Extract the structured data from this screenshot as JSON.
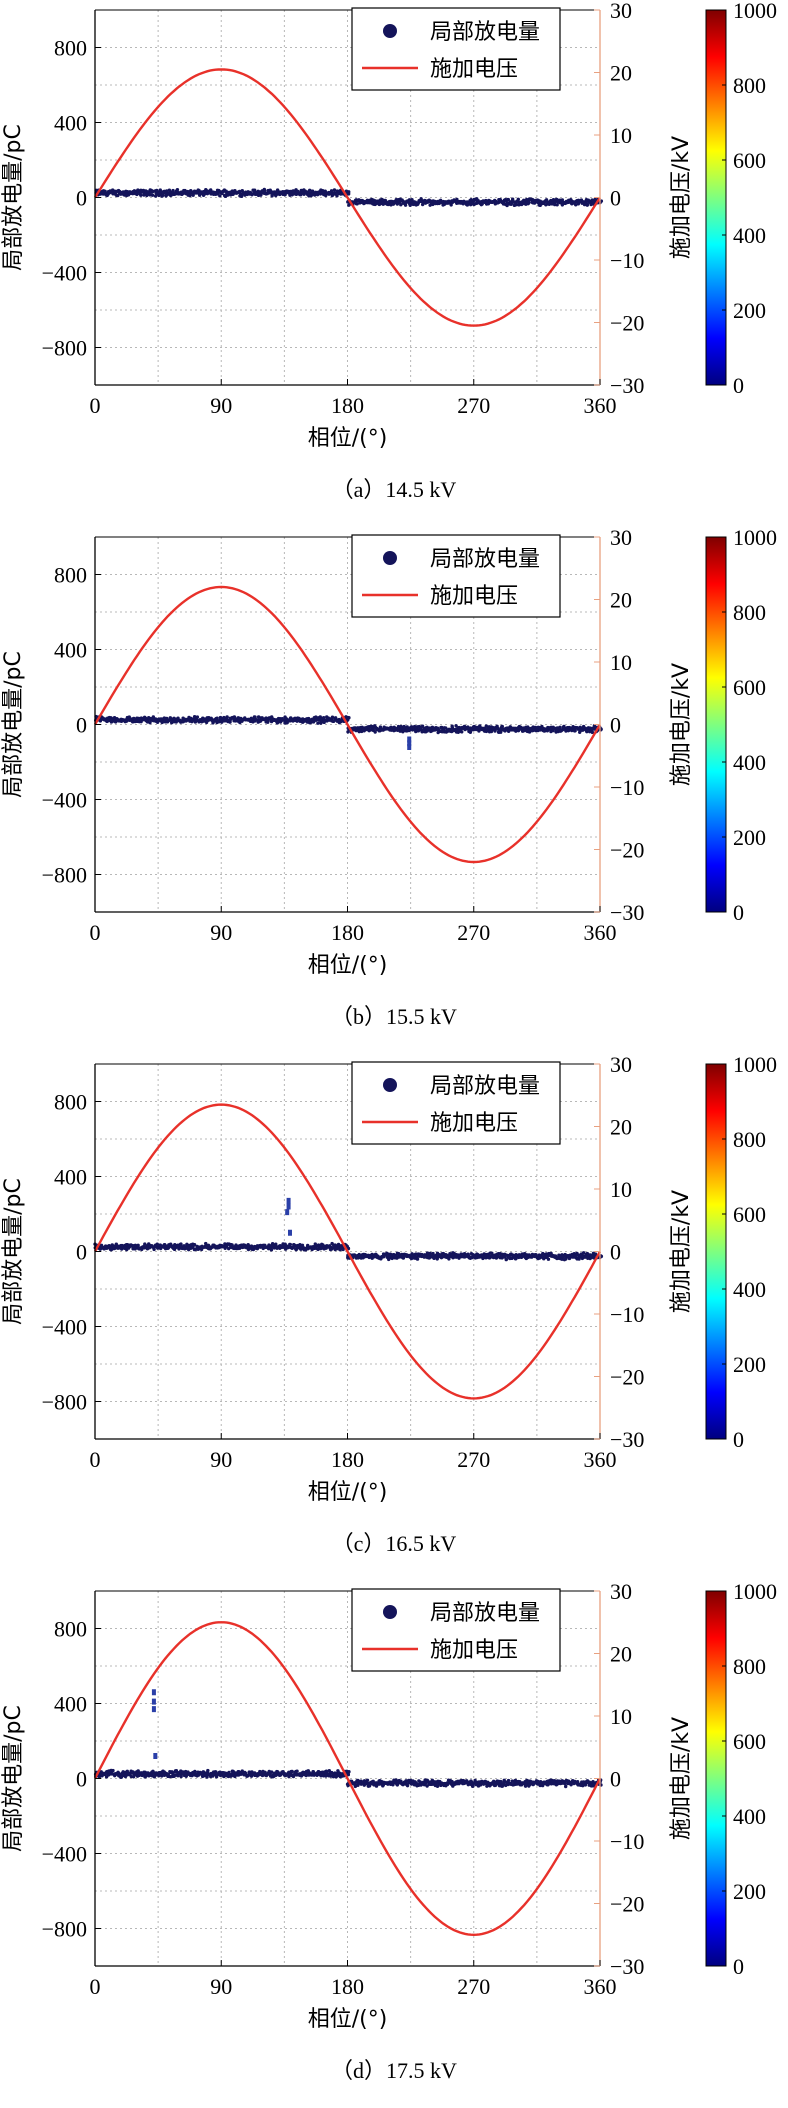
{
  "colors": {
    "pd_marker": "#14145a",
    "pd_outlier": "#2a3fa8",
    "voltage_line": "#e8312a",
    "right_axis": "#e8a080",
    "grid": "#b8b8b8",
    "colorbar": [
      "#00007f",
      "#0000ff",
      "#007fff",
      "#00ffff",
      "#7fff7f",
      "#ffff00",
      "#ff7f00",
      "#ff0000",
      "#7f0000"
    ]
  },
  "chart_data": [
    {
      "type": "scatter",
      "caption": "（a）14.5 kV",
      "xlabel": "相位/(°)",
      "ylabel": "局部放电量/pC",
      "y2label": "施加电压/kV",
      "colorbar_label": "施加电压/kV",
      "xlim": [
        0,
        360
      ],
      "ylim": [
        -1000,
        1000
      ],
      "y2lim": [
        -30,
        30
      ],
      "colorbar_lim": [
        0,
        1000
      ],
      "x_ticks": [
        "0",
        "90",
        "180",
        "270",
        "360"
      ],
      "y_ticks": [
        "800",
        "400",
        "0",
        "−400",
        "−800"
      ],
      "y2_ticks": [
        "30",
        "20",
        "10",
        "0",
        "−10",
        "−20",
        "−30"
      ],
      "colorbar_ticks": [
        "1000",
        "800",
        "600",
        "400",
        "200",
        "0"
      ],
      "grid": true,
      "legend_position": "top-right",
      "series": [
        {
          "name": "局部放电量",
          "kind": "scatter-band",
          "positive_half": {
            "x": [
              0,
              180
            ],
            "y": [
              15,
              35
            ]
          },
          "negative_half": {
            "x": [
              180,
              360
            ],
            "y": [
              -15,
              -35
            ]
          },
          "outliers": []
        },
        {
          "name": "施加电压",
          "kind": "sine",
          "amplitude_kV": 20.5,
          "x": [
            0,
            360
          ]
        }
      ]
    },
    {
      "type": "scatter",
      "caption": "（b）15.5 kV",
      "xlabel": "相位/(°)",
      "ylabel": "局部放电量/pC",
      "y2label": "施加电压/kV",
      "colorbar_label": "施加电压/kV",
      "xlim": [
        0,
        360
      ],
      "ylim": [
        -1000,
        1000
      ],
      "y2lim": [
        -30,
        30
      ],
      "colorbar_lim": [
        0,
        1000
      ],
      "x_ticks": [
        "0",
        "90",
        "180",
        "270",
        "360"
      ],
      "y_ticks": [
        "800",
        "400",
        "0",
        "−400",
        "−800"
      ],
      "y2_ticks": [
        "30",
        "20",
        "10",
        "0",
        "−10",
        "−20",
        "−30"
      ],
      "colorbar_ticks": [
        "1000",
        "800",
        "600",
        "400",
        "200",
        "0"
      ],
      "grid": true,
      "legend_position": "top-right",
      "series": [
        {
          "name": "局部放电量",
          "kind": "scatter-band",
          "positive_half": {
            "x": [
              0,
              180
            ],
            "y": [
              15,
              35
            ]
          },
          "negative_half": {
            "x": [
              180,
              360
            ],
            "y": [
              -15,
              -35
            ]
          },
          "outliers": [
            {
              "x": 224,
              "y": -80
            },
            {
              "x": 224,
              "y": -100
            },
            {
              "x": 224,
              "y": -120
            }
          ]
        },
        {
          "name": "施加电压",
          "kind": "sine",
          "amplitude_kV": 22,
          "x": [
            0,
            360
          ]
        }
      ]
    },
    {
      "type": "scatter",
      "caption": "（c）16.5 kV",
      "xlabel": "相位/(°)",
      "ylabel": "局部放电量/pC",
      "y2label": "施加电压/kV",
      "colorbar_label": "施加电压/kV",
      "xlim": [
        0,
        360
      ],
      "ylim": [
        -1000,
        1000
      ],
      "y2lim": [
        -30,
        30
      ],
      "colorbar_lim": [
        0,
        1000
      ],
      "x_ticks": [
        "0",
        "90",
        "180",
        "270",
        "360"
      ],
      "y_ticks": [
        "800",
        "400",
        "0",
        "−400",
        "−800"
      ],
      "y2_ticks": [
        "30",
        "20",
        "10",
        "0",
        "−10",
        "−20",
        "−30"
      ],
      "colorbar_ticks": [
        "1000",
        "800",
        "600",
        "400",
        "200",
        "0"
      ],
      "grid": true,
      "legend_position": "top-right",
      "series": [
        {
          "name": "局部放电量",
          "kind": "scatter-band",
          "positive_half": {
            "x": [
              0,
              180
            ],
            "y": [
              15,
              35
            ]
          },
          "negative_half": {
            "x": [
              180,
              360
            ],
            "y": [
              -15,
              -35
            ]
          },
          "outliers": [
            {
              "x": 138,
              "y": 270
            },
            {
              "x": 138,
              "y": 240
            },
            {
              "x": 137,
              "y": 210
            },
            {
              "x": 139,
              "y": 100
            }
          ]
        },
        {
          "name": "施加电压",
          "kind": "sine",
          "amplitude_kV": 23.5,
          "x": [
            0,
            360
          ]
        }
      ]
    },
    {
      "type": "scatter",
      "caption": "（d）17.5 kV",
      "xlabel": "相位/(°)",
      "ylabel": "局部放电量/pC",
      "y2label": "施加电压/kV",
      "colorbar_label": "施加电压/kV",
      "xlim": [
        0,
        360
      ],
      "ylim": [
        -1000,
        1000
      ],
      "y2lim": [
        -30,
        30
      ],
      "colorbar_lim": [
        0,
        1000
      ],
      "x_ticks": [
        "0",
        "90",
        "180",
        "270",
        "360"
      ],
      "y_ticks": [
        "800",
        "400",
        "0",
        "−400",
        "−800"
      ],
      "y2_ticks": [
        "30",
        "20",
        "10",
        "0",
        "−10",
        "−20",
        "−30"
      ],
      "colorbar_ticks": [
        "1000",
        "800",
        "600",
        "400",
        "200",
        "0"
      ],
      "grid": true,
      "legend_position": "top-right",
      "series": [
        {
          "name": "局部放电量",
          "kind": "scatter-band",
          "positive_half": {
            "x": [
              0,
              180
            ],
            "y": [
              15,
              35
            ]
          },
          "negative_half": {
            "x": [
              180,
              360
            ],
            "y": [
              -15,
              -35
            ]
          },
          "outliers": [
            {
              "x": 42,
              "y": 460
            },
            {
              "x": 42,
              "y": 410
            },
            {
              "x": 42,
              "y": 370
            },
            {
              "x": 43,
              "y": 120
            }
          ]
        },
        {
          "name": "施加电压",
          "kind": "sine",
          "amplitude_kV": 25,
          "x": [
            0,
            360
          ]
        }
      ]
    }
  ]
}
